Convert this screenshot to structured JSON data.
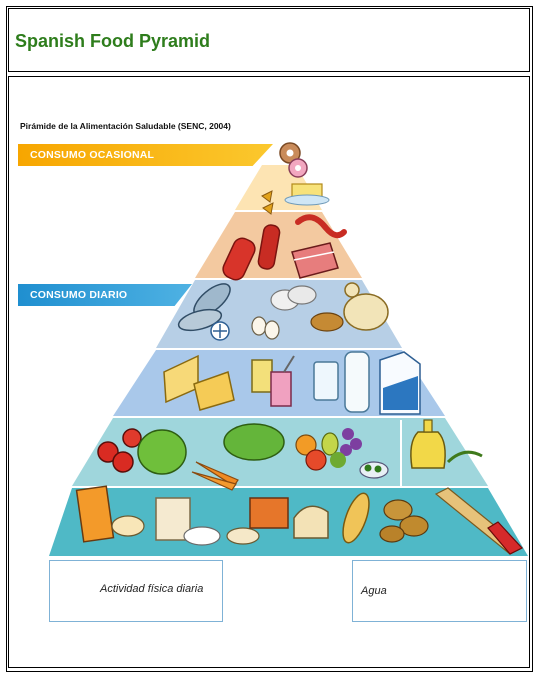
{
  "page": {
    "title": "Spanish Food Pyramid"
  },
  "pyramid": {
    "caption": "Pirámide de la Alimentación Saludable (SENC, 2004)",
    "banners": {
      "ocasional": "CONSUMO OCASIONAL",
      "diario": "CONSUMO DIARIO"
    },
    "footer": {
      "actividad": "Actividad física diaria",
      "agua": "Agua"
    }
  },
  "colors": {
    "title_green": "#2e7d1c",
    "ocasional_orange": "#f7a600",
    "diario_blue": "#1f8fd0",
    "tier_sweets": "#fde4b3",
    "tier_meats": "#f3c9a0",
    "tier_protein": "#b7cfe6",
    "tier_dairy": "#a9c8ea",
    "tier_produce": "#9fd6dc",
    "tier_grains": "#4fb9c6"
  }
}
